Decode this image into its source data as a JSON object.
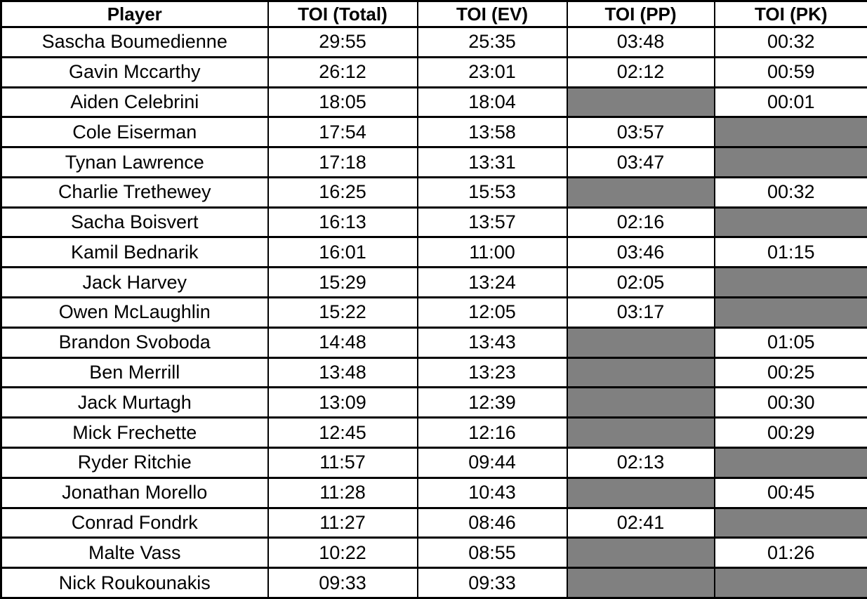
{
  "colors": {
    "background": "#ffffff",
    "border": "#000000",
    "text": "#000000",
    "shaded_cell": "#808080"
  },
  "chart_data": {
    "type": "table",
    "columns": [
      "Player",
      "TOI (Total)",
      "TOI (EV)",
      "TOI (PP)",
      "TOI (PK)"
    ],
    "rows": [
      [
        "Sascha Boumedienne",
        "29:55",
        "25:35",
        "03:48",
        "00:32"
      ],
      [
        "Gavin Mccarthy",
        "26:12",
        "23:01",
        "02:12",
        "00:59"
      ],
      [
        "Aiden Celebrini",
        "18:05",
        "18:04",
        null,
        "00:01"
      ],
      [
        "Cole Eiserman",
        "17:54",
        "13:58",
        "03:57",
        null
      ],
      [
        "Tynan Lawrence",
        "17:18",
        "13:31",
        "03:47",
        null
      ],
      [
        "Charlie Trethewey",
        "16:25",
        "15:53",
        null,
        "00:32"
      ],
      [
        "Sacha Boisvert",
        "16:13",
        "13:57",
        "02:16",
        null
      ],
      [
        "Kamil Bednarik",
        "16:01",
        "11:00",
        "03:46",
        "01:15"
      ],
      [
        "Jack Harvey",
        "15:29",
        "13:24",
        "02:05",
        null
      ],
      [
        "Owen McLaughlin",
        "15:22",
        "12:05",
        "03:17",
        null
      ],
      [
        "Brandon Svoboda",
        "14:48",
        "13:43",
        null,
        "01:05"
      ],
      [
        "Ben Merrill",
        "13:48",
        "13:23",
        null,
        "00:25"
      ],
      [
        "Jack Murtagh",
        "13:09",
        "12:39",
        null,
        "00:30"
      ],
      [
        "Mick Frechette",
        "12:45",
        "12:16",
        null,
        "00:29"
      ],
      [
        "Ryder Ritchie",
        "11:57",
        "09:44",
        "02:13",
        null
      ],
      [
        "Jonathan Morello",
        "11:28",
        "10:43",
        null,
        "00:45"
      ],
      [
        "Conrad Fondrk",
        "11:27",
        "08:46",
        "02:41",
        null
      ],
      [
        "Malte Vass",
        "10:22",
        "08:55",
        null,
        "01:26"
      ],
      [
        "Nick Roukounakis",
        "09:33",
        "09:33",
        null,
        null
      ]
    ],
    "empty_cell_style": "gray-shaded",
    "legend_position": "none",
    "grid": true
  }
}
